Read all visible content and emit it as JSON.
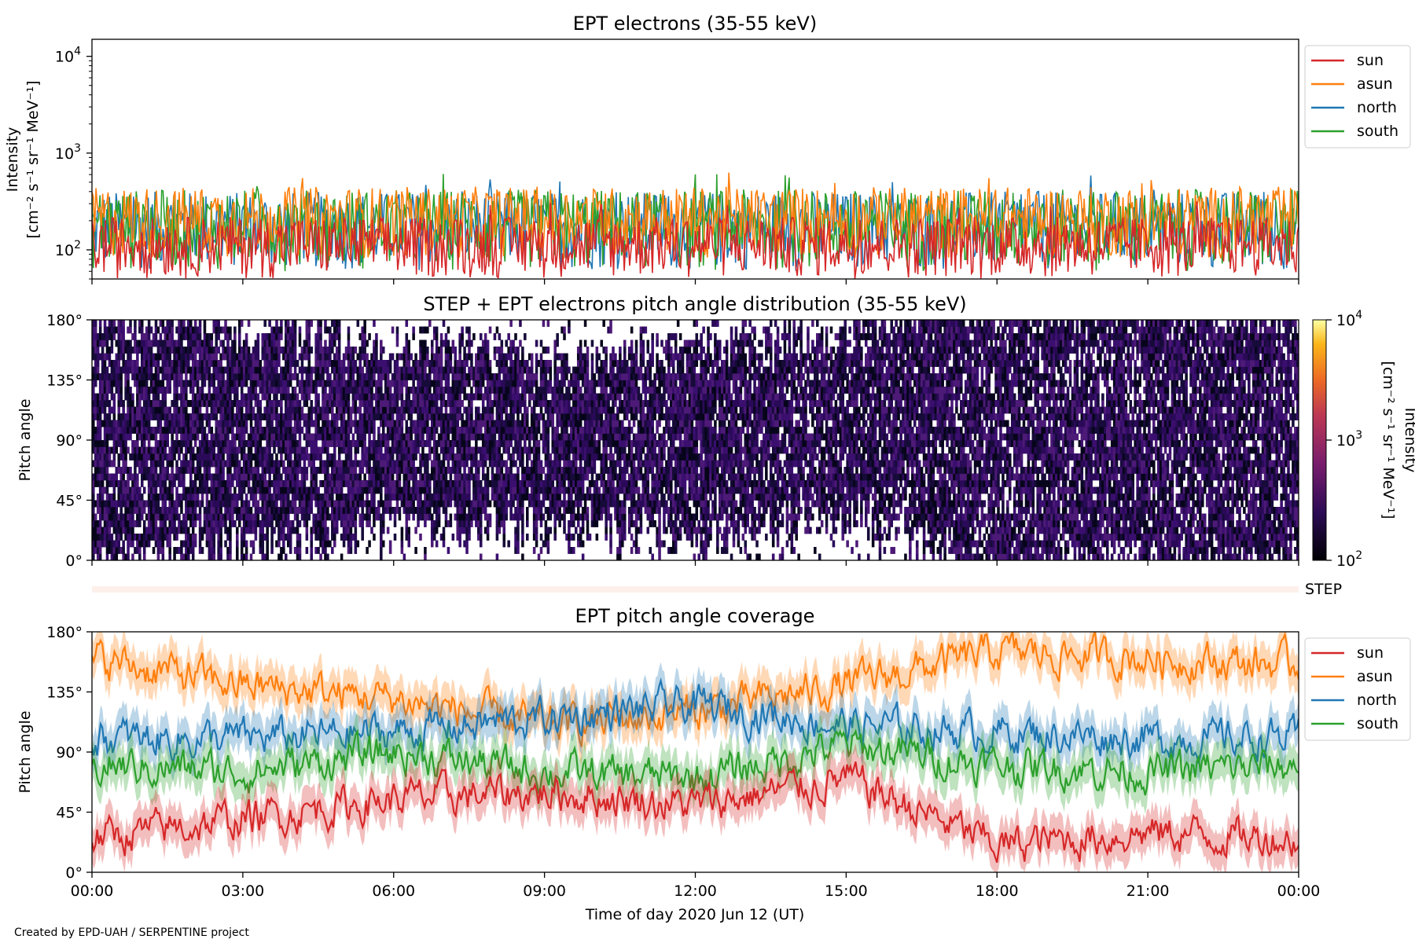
{
  "panels": {
    "top": {
      "title": "EPT electrons (35-55 keV)",
      "ylabel_line1": "Intensity",
      "ylabel_line2": "[cm⁻² s⁻¹ sr⁻¹ MeV⁻¹]"
    },
    "mid": {
      "title": "STEP + EPT electrons pitch angle distribution (35-55 keV)",
      "ylabel": "Pitch angle",
      "colorbar_label_line1": "Intensity",
      "colorbar_label_line2": "[cm⁻² s⁻¹ sr⁻¹ MeV⁻¹]"
    },
    "step": {
      "label": "STEP"
    },
    "bottom": {
      "title": "EPT pitch angle coverage",
      "ylabel": "Pitch angle",
      "xlabel": "Time of day 2020 Jun 12 (UT)"
    }
  },
  "credit": "Created by EPD-UAH / SERPENTINE project",
  "chart_data": [
    {
      "type": "line",
      "title": "EPT electrons (35-55 keV)",
      "ylabel": "Intensity [cm⁻² s⁻¹ sr⁻¹ MeV⁻¹]",
      "yscale": "log",
      "ylim": [
        50,
        15000
      ],
      "yticks": [
        {
          "v": 100,
          "label": "10",
          "exp": "2"
        },
        {
          "v": 1000,
          "label": "10",
          "exp": "3"
        },
        {
          "v": 10000,
          "label": "10",
          "exp": "4"
        }
      ],
      "x_start": "2020-06-12 00:00",
      "x_end": "2020-06-13 00:00",
      "legend_position": "upper-right-outside",
      "series": [
        {
          "name": "sun",
          "color": "#d62728",
          "typical": [
            50,
            220
          ]
        },
        {
          "name": "asun",
          "color": "#ff7f0e",
          "typical": [
            80,
            450
          ]
        },
        {
          "name": "north",
          "color": "#1f77b4",
          "typical": [
            60,
            400
          ]
        },
        {
          "name": "south",
          "color": "#2ca02c",
          "typical": [
            60,
            420
          ]
        }
      ]
    },
    {
      "type": "heatmap",
      "title": "STEP + EPT electrons pitch angle distribution (35-55 keV)",
      "ylabel": "Pitch angle",
      "ylim": [
        0,
        180
      ],
      "yticks": [
        "0°",
        "45°",
        "90°",
        "135°",
        "180°"
      ],
      "colorbar": {
        "scale": "log",
        "range": [
          100,
          10000
        ],
        "cmap": "inferno",
        "ticks": [
          {
            "label": "10",
            "exp": "2"
          },
          {
            "label": "10",
            "exp": "3"
          },
          {
            "label": "10",
            "exp": "4"
          }
        ]
      },
      "note": "values near 100–300 throughout; white gaps where no coverage"
    },
    {
      "type": "line",
      "title": "EPT pitch angle coverage",
      "ylabel": "Pitch angle",
      "xlabel": "Time of day 2020 Jun 12 (UT)",
      "ylim": [
        0,
        180
      ],
      "yticks": [
        "0°",
        "45°",
        "90°",
        "135°",
        "180°"
      ],
      "xticks": [
        "00:00",
        "03:00",
        "06:00",
        "09:00",
        "12:00",
        "15:00",
        "18:00",
        "21:00",
        "00:00"
      ],
      "legend_position": "upper-right-outside",
      "series": [
        {
          "name": "sun",
          "color": "#d62728",
          "hours": [
            0,
            3,
            6,
            9,
            12,
            15,
            18,
            21,
            24
          ],
          "values": [
            25,
            40,
            55,
            60,
            50,
            70,
            20,
            30,
            25
          ]
        },
        {
          "name": "asun",
          "color": "#ff7f0e",
          "hours": [
            0,
            3,
            6,
            9,
            12,
            15,
            18,
            21,
            24
          ],
          "values": [
            160,
            140,
            130,
            110,
            120,
            140,
            165,
            160,
            155
          ]
        },
        {
          "name": "north",
          "color": "#1f77b4",
          "hours": [
            0,
            3,
            6,
            9,
            12,
            15,
            18,
            21,
            24
          ],
          "values": [
            100,
            100,
            105,
            115,
            125,
            110,
            105,
            100,
            100
          ]
        },
        {
          "name": "south",
          "color": "#2ca02c",
          "hours": [
            0,
            3,
            6,
            9,
            12,
            15,
            18,
            21,
            24
          ],
          "values": [
            80,
            75,
            90,
            75,
            70,
            95,
            80,
            75,
            80
          ]
        }
      ]
    }
  ]
}
